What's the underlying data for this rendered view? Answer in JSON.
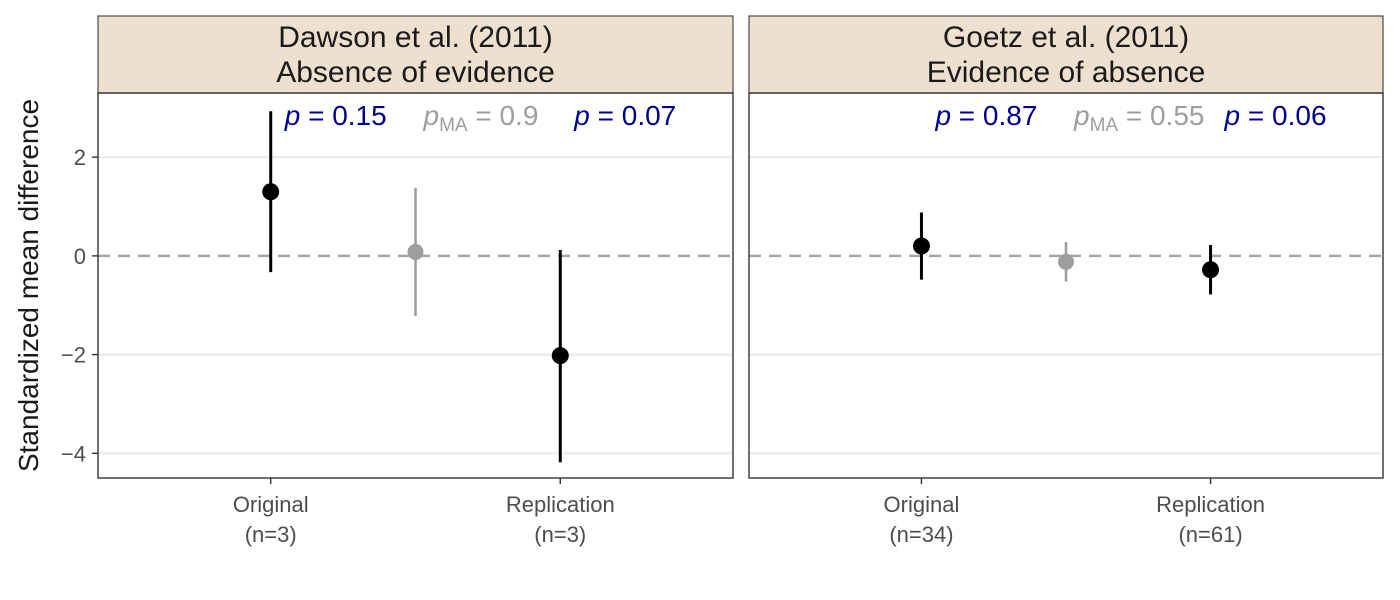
{
  "chart_data": {
    "type": "errorbar",
    "ylabel": "Standardized mean difference",
    "ylim": [
      -4.5,
      3.3
    ],
    "y_ticks": [
      2,
      0,
      -2,
      -4
    ],
    "y_tick_labels": [
      "2",
      "0",
      "−2",
      "−4"
    ],
    "grid": true,
    "reference_line": {
      "y": 0,
      "style": "dashed",
      "color": "#a6a6a6"
    },
    "colors": {
      "study": "#000000",
      "meta": "#9e9e9e",
      "p_study": "#00008b",
      "p_meta": "#9e9e9e",
      "strip_fill": "#ede0cf"
    },
    "panels": [
      {
        "strip": {
          "line1": "Dawson et al. (2011)",
          "line2": "Absence of evidence"
        },
        "categories": [
          {
            "label": "Original",
            "n": "(n=3)"
          },
          {
            "label": "Replication",
            "n": "(n=3)"
          }
        ],
        "points": [
          {
            "group": "Original",
            "estimate": 1.3,
            "lower": -0.33,
            "upper": 2.93
          },
          {
            "group": "Meta-analysis",
            "estimate": 0.08,
            "lower": -1.22,
            "upper": 1.38
          },
          {
            "group": "Replication",
            "estimate": -2.02,
            "lower": -4.18,
            "upper": 0.12
          }
        ],
        "p_values": [
          {
            "symbol": "p",
            "sub": "",
            "eq": " = ",
            "value": "0.15"
          },
          {
            "symbol": "p",
            "sub": "MA",
            "eq": " = ",
            "value": "0.9"
          },
          {
            "symbol": "p",
            "sub": "",
            "eq": " = ",
            "value": "0.07"
          }
        ]
      },
      {
        "strip": {
          "line1": "Goetz et al. (2011)",
          "line2": "Evidence of absence"
        },
        "categories": [
          {
            "label": "Original",
            "n": "(n=34)"
          },
          {
            "label": "Replication",
            "n": "(n=61)"
          }
        ],
        "points": [
          {
            "group": "Original",
            "estimate": 0.2,
            "lower": -0.48,
            "upper": 0.88
          },
          {
            "group": "Meta-analysis",
            "estimate": -0.12,
            "lower": -0.52,
            "upper": 0.28
          },
          {
            "group": "Replication",
            "estimate": -0.28,
            "lower": -0.78,
            "upper": 0.22
          }
        ],
        "p_values": [
          {
            "symbol": "p",
            "sub": "",
            "eq": " = ",
            "value": "0.87"
          },
          {
            "symbol": "p",
            "sub": "MA",
            "eq": " = ",
            "value": "0.55"
          },
          {
            "symbol": "p",
            "sub": "",
            "eq": " = ",
            "value": "0.06"
          }
        ]
      }
    ]
  }
}
